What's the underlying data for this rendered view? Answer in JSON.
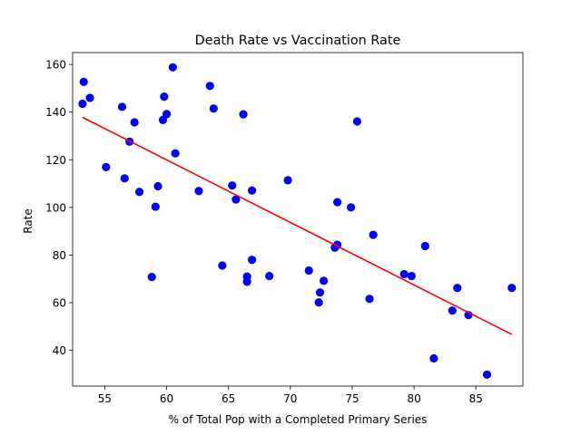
{
  "chart_data": {
    "type": "scatter",
    "title": "Death Rate vs Vaccination Rate",
    "xlabel": "% of Total Pop with a Completed Primary Series",
    "ylabel": "Rate",
    "xlim": [
      52.4,
      88.8
    ],
    "ylim": [
      25,
      165
    ],
    "xticks": [
      55,
      60,
      65,
      70,
      75,
      80,
      85
    ],
    "yticks": [
      40,
      60,
      80,
      100,
      120,
      140,
      160
    ],
    "grid": false,
    "point_color": "#0000ff",
    "line_color": "#ff0000",
    "points": [
      {
        "x": 53.3,
        "y": 152.7
      },
      {
        "x": 53.2,
        "y": 143.5
      },
      {
        "x": 53.8,
        "y": 146.0
      },
      {
        "x": 55.1,
        "y": 116.9
      },
      {
        "x": 56.4,
        "y": 142.2
      },
      {
        "x": 56.6,
        "y": 112.2
      },
      {
        "x": 57.0,
        "y": 127.6
      },
      {
        "x": 57.4,
        "y": 135.7
      },
      {
        "x": 57.8,
        "y": 106.5
      },
      {
        "x": 58.8,
        "y": 70.8
      },
      {
        "x": 59.1,
        "y": 100.3
      },
      {
        "x": 59.3,
        "y": 108.9
      },
      {
        "x": 59.7,
        "y": 136.7
      },
      {
        "x": 59.8,
        "y": 146.5
      },
      {
        "x": 60.0,
        "y": 139.2
      },
      {
        "x": 60.5,
        "y": 158.8
      },
      {
        "x": 60.7,
        "y": 122.7
      },
      {
        "x": 62.6,
        "y": 106.9
      },
      {
        "x": 63.5,
        "y": 151.0
      },
      {
        "x": 63.8,
        "y": 141.5
      },
      {
        "x": 64.5,
        "y": 75.6
      },
      {
        "x": 65.3,
        "y": 109.2
      },
      {
        "x": 65.6,
        "y": 103.3
      },
      {
        "x": 66.2,
        "y": 139.1
      },
      {
        "x": 66.5,
        "y": 71.0
      },
      {
        "x": 66.5,
        "y": 68.8
      },
      {
        "x": 66.9,
        "y": 78.0
      },
      {
        "x": 66.9,
        "y": 107.1
      },
      {
        "x": 68.3,
        "y": 71.2
      },
      {
        "x": 69.8,
        "y": 111.4
      },
      {
        "x": 71.5,
        "y": 73.5
      },
      {
        "x": 72.3,
        "y": 60.1
      },
      {
        "x": 72.4,
        "y": 64.3
      },
      {
        "x": 72.7,
        "y": 69.2
      },
      {
        "x": 73.6,
        "y": 83.1
      },
      {
        "x": 73.8,
        "y": 84.3
      },
      {
        "x": 73.8,
        "y": 102.2
      },
      {
        "x": 74.9,
        "y": 100.0
      },
      {
        "x": 75.4,
        "y": 136.1
      },
      {
        "x": 76.4,
        "y": 61.6
      },
      {
        "x": 76.7,
        "y": 88.5
      },
      {
        "x": 79.2,
        "y": 72.0
      },
      {
        "x": 79.8,
        "y": 71.2
      },
      {
        "x": 80.9,
        "y": 83.8
      },
      {
        "x": 81.6,
        "y": 36.6
      },
      {
        "x": 83.1,
        "y": 56.7
      },
      {
        "x": 83.5,
        "y": 66.2
      },
      {
        "x": 84.4,
        "y": 54.8
      },
      {
        "x": 85.9,
        "y": 29.8
      },
      {
        "x": 87.9,
        "y": 66.2
      }
    ],
    "trend_line": {
      "x": [
        53.2,
        87.9
      ],
      "y": [
        137.8,
        46.7
      ]
    }
  }
}
